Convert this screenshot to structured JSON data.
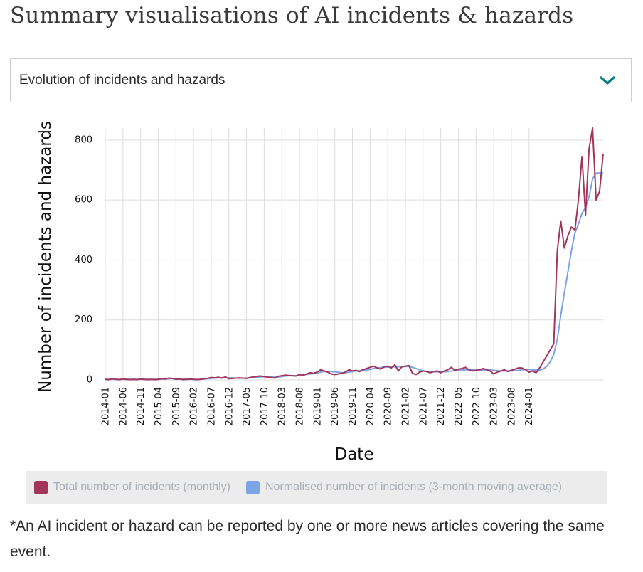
{
  "page": {
    "title": "Summary visualisations of AI incidents & hazards",
    "footnote": "*An AI incident or hazard can be reported by one or more news articles covering the same event."
  },
  "selector": {
    "value": "Evolution of incidents and hazards",
    "icon": "chevron-down-icon"
  },
  "chart_data": {
    "type": "line",
    "title": "",
    "xlabel": "Date",
    "ylabel": "Number of incidents and hazards",
    "ylim": [
      0,
      840
    ],
    "yticks": [
      0,
      200,
      400,
      600,
      800
    ],
    "grid": true,
    "legend_position": "bottom",
    "x_start": "2014-01",
    "x_tick_labels": [
      "2014-01",
      "2014-06",
      "2014-11",
      "2015-04",
      "2015-09",
      "2016-02",
      "2016-07",
      "2016-12",
      "2017-05",
      "2017-10",
      "2018-03",
      "2018-08",
      "2019-01",
      "2019-06",
      "2019-11",
      "2020-04",
      "2020-09",
      "2021-02",
      "2021-07",
      "2021-12",
      "2022-05",
      "2022-10",
      "2023-03",
      "2023-08",
      "2024-01"
    ],
    "series": [
      {
        "name": "Total number of incidents (monthly)",
        "color": "#a3345a",
        "values": [
          2,
          1,
          4,
          2,
          1,
          3,
          2,
          1,
          2,
          1,
          3,
          2,
          1,
          2,
          1,
          2,
          4,
          3,
          6,
          5,
          2,
          3,
          1,
          2,
          3,
          2,
          1,
          2,
          4,
          5,
          8,
          7,
          9,
          6,
          10,
          4,
          5,
          6,
          7,
          6,
          5,
          8,
          10,
          12,
          13,
          11,
          9,
          8,
          6,
          12,
          14,
          16,
          15,
          14,
          13,
          18,
          16,
          20,
          24,
          22,
          26,
          34,
          30,
          26,
          20,
          18,
          20,
          22,
          26,
          34,
          30,
          32,
          28,
          34,
          38,
          42,
          46,
          40,
          36,
          44,
          46,
          40,
          50,
          30,
          44,
          46,
          48,
          22,
          18,
          26,
          30,
          28,
          24,
          28,
          30,
          24,
          30,
          34,
          42,
          32,
          36,
          38,
          42,
          34,
          30,
          32,
          34,
          38,
          34,
          30,
          20,
          26,
          30,
          34,
          28,
          32,
          36,
          40,
          40,
          34,
          26,
          30,
          24,
          40,
          60,
          80,
          100,
          120,
          430,
          530,
          440,
          480,
          510,
          500,
          600,
          745,
          550,
          770,
          840,
          600,
          630,
          755
        ]
      },
      {
        "name": "Normalised number of incidents (3-month moving average)",
        "color": "#7ea3e6",
        "values": [
          2,
          2,
          2,
          2,
          2,
          2,
          2,
          2,
          2,
          2,
          2,
          2,
          2,
          2,
          2,
          2,
          3,
          3,
          4,
          4,
          4,
          3,
          3,
          2,
          2,
          2,
          2,
          2,
          3,
          4,
          5,
          6,
          7,
          7,
          8,
          7,
          7,
          6,
          6,
          6,
          6,
          7,
          8,
          9,
          10,
          11,
          11,
          10,
          9,
          10,
          11,
          13,
          14,
          14,
          14,
          15,
          16,
          18,
          20,
          21,
          23,
          26,
          28,
          29,
          28,
          27,
          26,
          24,
          24,
          26,
          28,
          30,
          31,
          32,
          33,
          35,
          38,
          40,
          41,
          42,
          43,
          43,
          44,
          44,
          44,
          45,
          45,
          42,
          38,
          34,
          30,
          29,
          28,
          27,
          27,
          27,
          27,
          28,
          30,
          31,
          32,
          33,
          34,
          34,
          34,
          33,
          33,
          33,
          34,
          34,
          32,
          31,
          30,
          30,
          30,
          30,
          31,
          32,
          34,
          35,
          35,
          34,
          33,
          33,
          36,
          45,
          60,
          85,
          135,
          215,
          290,
          360,
          430,
          490,
          520,
          555,
          575,
          610,
          670,
          690,
          690,
          690
        ]
      }
    ]
  }
}
